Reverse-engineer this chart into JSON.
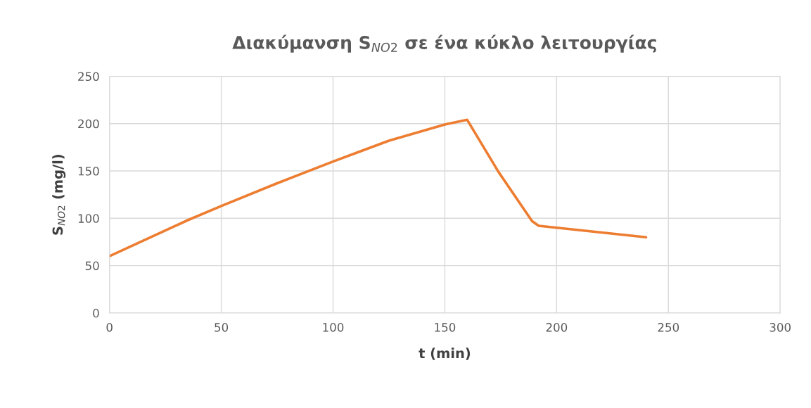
{
  "chart_data": {
    "type": "line",
    "title": "Διακύμανση S$_{NO2}$ σε ένα κύκλο λειτουργίας",
    "xlabel": "t (min)",
    "ylabel": "S$_{NO2}$ (mg/l)",
    "x": [
      0,
      35,
      50,
      75,
      100,
      125,
      150,
      160,
      174,
      189,
      192,
      240
    ],
    "series": [
      {
        "color": "#ed7d31",
        "values": [
          60,
          98,
          113,
          137,
          160,
          182,
          199,
          204,
          149,
          97,
          92,
          80
        ]
      }
    ],
    "xlim": [
      0,
      300
    ],
    "xticks": [
      0,
      50,
      100,
      150,
      200,
      250,
      300
    ],
    "ylim": [
      0,
      250
    ],
    "yticks": [
      0,
      50,
      100,
      150,
      200,
      250
    ],
    "grid": true,
    "marker": "none",
    "line_style": "solid"
  }
}
